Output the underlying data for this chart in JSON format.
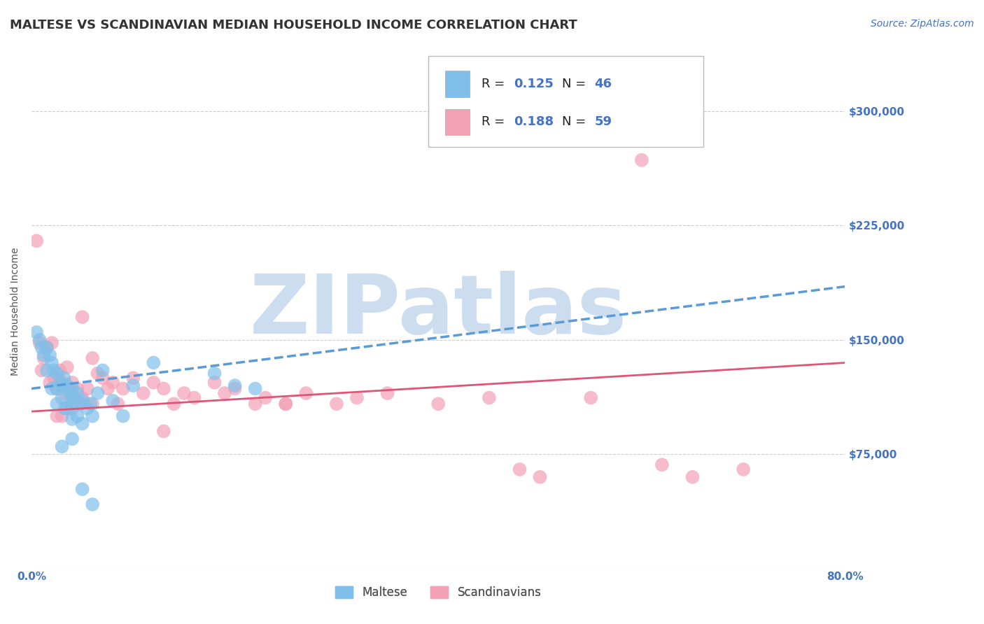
{
  "title": "MALTESE VS SCANDINAVIAN MEDIAN HOUSEHOLD INCOME CORRELATION CHART",
  "source": "Source: ZipAtlas.com",
  "ylabel": "Median Household Income",
  "watermark": "ZIPatlas",
  "xlim": [
    0.0,
    0.8
  ],
  "ylim": [
    0,
    337500
  ],
  "xticks": [
    0.0,
    0.1,
    0.2,
    0.3,
    0.4,
    0.5,
    0.6,
    0.7,
    0.8
  ],
  "xticklabels": [
    "0.0%",
    "",
    "",
    "",
    "",
    "",
    "",
    "",
    "80.0%"
  ],
  "yticks": [
    0,
    75000,
    150000,
    225000,
    300000
  ],
  "yticklabels_right": [
    "",
    "$75,000",
    "$150,000",
    "$225,000",
    "$300,000"
  ],
  "blue_color": "#7fbfea",
  "blue_line_color": "#5b9bd5",
  "pink_color": "#f4a0b5",
  "pink_line_color": "#e05577",
  "blue_R": 0.125,
  "blue_N": 46,
  "pink_R": 0.188,
  "pink_N": 59,
  "legend_label_blue": "Maltese",
  "legend_label_pink": "Scandinavians",
  "blue_scatter_x": [
    0.005,
    0.008,
    0.01,
    0.012,
    0.015,
    0.015,
    0.018,
    0.02,
    0.02,
    0.022,
    0.025,
    0.025,
    0.025,
    0.028,
    0.03,
    0.03,
    0.032,
    0.033,
    0.035,
    0.035,
    0.038,
    0.04,
    0.04,
    0.04,
    0.042,
    0.045,
    0.045,
    0.048,
    0.05,
    0.05,
    0.055,
    0.058,
    0.06,
    0.065,
    0.07,
    0.08,
    0.09,
    0.1,
    0.12,
    0.18,
    0.2,
    0.03,
    0.04,
    0.05,
    0.06,
    0.22
  ],
  "blue_scatter_y": [
    155000,
    150000,
    145000,
    140000,
    145000,
    130000,
    140000,
    135000,
    118000,
    130000,
    128000,
    118000,
    108000,
    122000,
    120000,
    112000,
    125000,
    105000,
    120000,
    105000,
    115000,
    118000,
    108000,
    98000,
    112000,
    115000,
    100000,
    108000,
    110000,
    95000,
    105000,
    108000,
    100000,
    115000,
    130000,
    110000,
    100000,
    120000,
    135000,
    128000,
    120000,
    80000,
    85000,
    52000,
    42000,
    118000
  ],
  "pink_scatter_x": [
    0.005,
    0.008,
    0.01,
    0.012,
    0.015,
    0.018,
    0.02,
    0.022,
    0.025,
    0.025,
    0.028,
    0.03,
    0.03,
    0.033,
    0.035,
    0.038,
    0.04,
    0.04,
    0.045,
    0.048,
    0.05,
    0.05,
    0.055,
    0.06,
    0.06,
    0.065,
    0.07,
    0.075,
    0.08,
    0.085,
    0.09,
    0.1,
    0.11,
    0.12,
    0.13,
    0.14,
    0.15,
    0.16,
    0.18,
    0.19,
    0.2,
    0.22,
    0.23,
    0.25,
    0.27,
    0.3,
    0.32,
    0.35,
    0.4,
    0.45,
    0.5,
    0.55,
    0.6,
    0.65,
    0.7,
    0.25,
    0.13,
    0.48,
    0.62
  ],
  "pink_scatter_y": [
    215000,
    148000,
    130000,
    138000,
    145000,
    122000,
    148000,
    125000,
    118000,
    100000,
    130000,
    122000,
    100000,
    115000,
    132000,
    108000,
    122000,
    105000,
    118000,
    108000,
    165000,
    112000,
    118000,
    138000,
    108000,
    128000,
    125000,
    118000,
    122000,
    108000,
    118000,
    125000,
    115000,
    122000,
    118000,
    108000,
    115000,
    112000,
    122000,
    115000,
    118000,
    108000,
    112000,
    108000,
    115000,
    108000,
    112000,
    115000,
    108000,
    112000,
    60000,
    112000,
    268000,
    60000,
    65000,
    108000,
    90000,
    65000,
    68000
  ],
  "blue_trend_x": [
    0.0,
    0.8
  ],
  "blue_trend_y": [
    118000,
    185000
  ],
  "pink_trend_x": [
    0.0,
    0.8
  ],
  "pink_trend_y": [
    103000,
    135000
  ],
  "grid_color": "#cccccc",
  "title_color": "#333333",
  "axis_color": "#4472c4",
  "watermark_color": "#ccddf0",
  "background_color": "#ffffff",
  "title_fontsize": 13,
  "axis_label_fontsize": 10,
  "tick_fontsize": 11,
  "watermark_fontsize": 85,
  "legend_fontsize": 12,
  "source_fontsize": 10
}
